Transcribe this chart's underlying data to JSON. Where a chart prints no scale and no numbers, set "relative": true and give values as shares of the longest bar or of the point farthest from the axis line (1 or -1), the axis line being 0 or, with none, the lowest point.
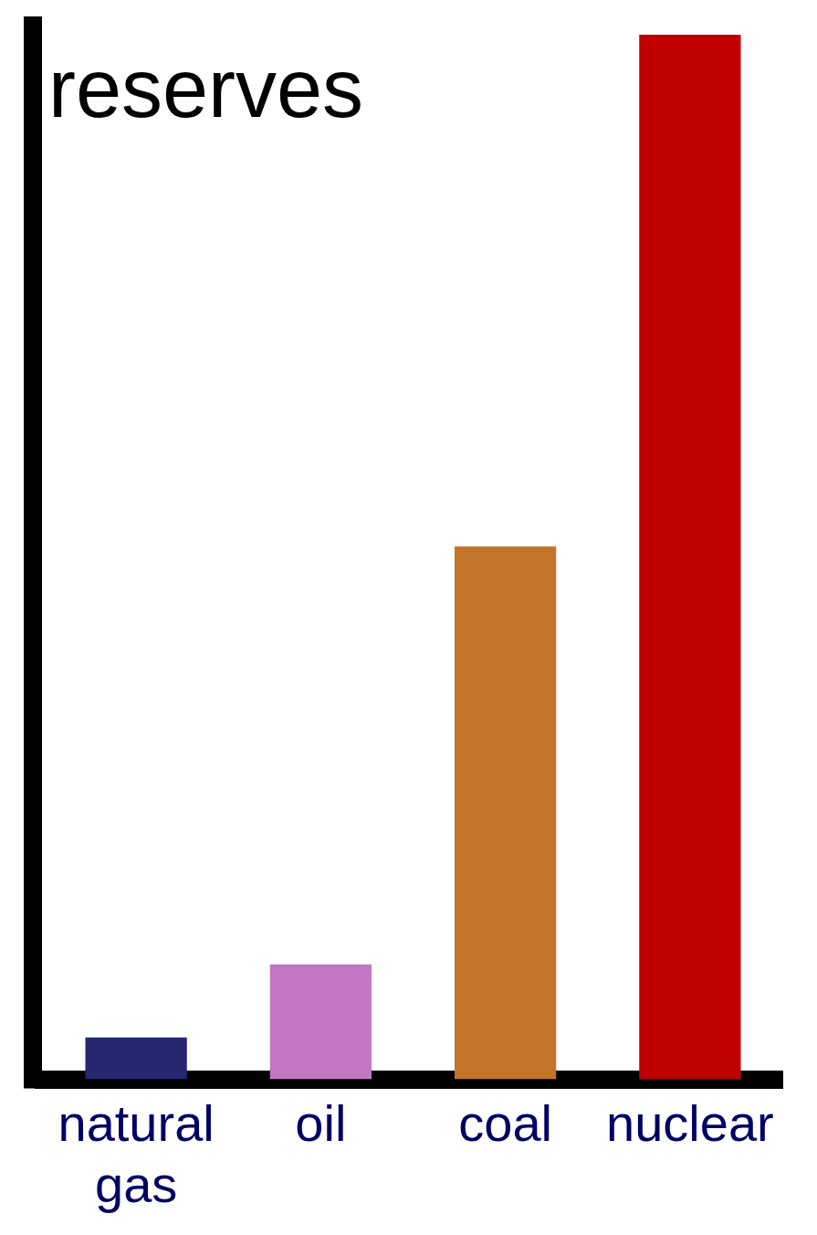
{
  "chart_data": {
    "type": "bar",
    "ylabel": "reserves",
    "categories": [
      "natural gas",
      "oil",
      "coal",
      "nuclear"
    ],
    "values": [
      0.04,
      0.11,
      0.51,
      1
    ],
    "colors": [
      "#262673",
      "#c277c2",
      "#c27528",
      "#c00000"
    ],
    "relative": true,
    "legend": false
  }
}
